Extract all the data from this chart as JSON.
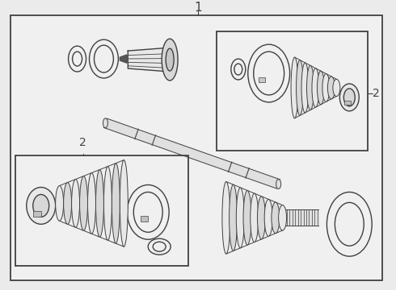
{
  "bg_color": "#ebebeb",
  "line_color": "#404040",
  "label_1": "1",
  "label_2a": "2",
  "label_2b": "2"
}
